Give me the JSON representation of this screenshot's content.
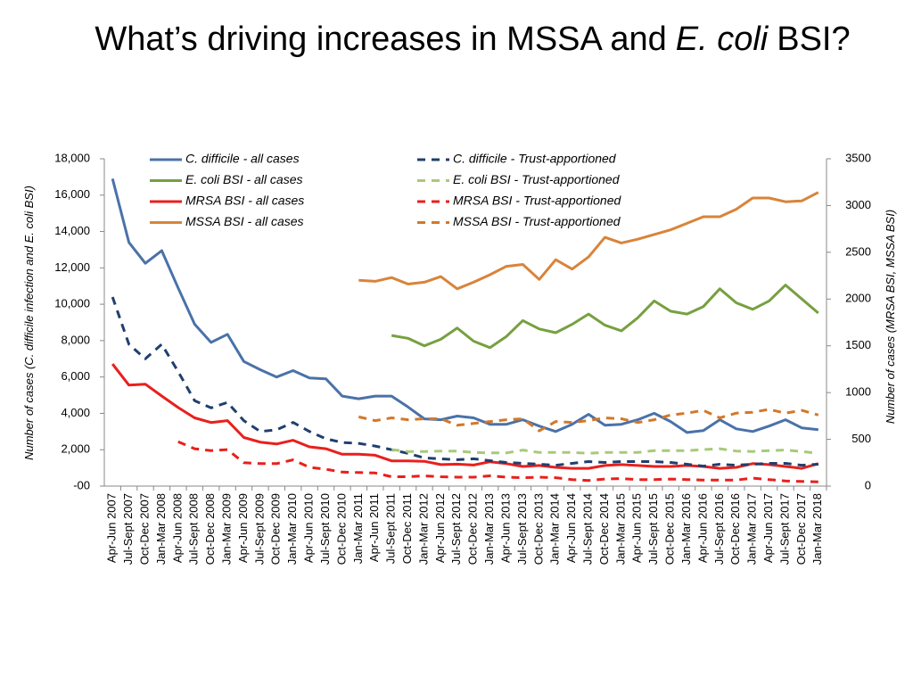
{
  "chart_data": {
    "type": "line",
    "title": [
      "What’s driving increases in MSSA and",
      "E. coli",
      "BSI?"
    ],
    "ylabel": "Number of cases (C. difficile infection and E. coli BSI)",
    "y2label": "Number of cases (MRSA BSI, MSSA BSI)",
    "categories": [
      "Apr-Jun 2007",
      "Jul-Sept 2007",
      "Oct-Dec 2007",
      "Jan-Mar 2008",
      "Apr-Jun 2008",
      "Jul-Sept 2008",
      "Oct-Dec 2008",
      "Jan-Mar 2009",
      "Apr-Jun 2009",
      "Jul-Sept 2009",
      "Oct-Dec 2009",
      "Jan-Mar 2010",
      "Apr-Jun 2010",
      "Jul-Sept 2010",
      "Oct-Dec 2010",
      "Jan-Mar 2011",
      "Apr-Jun 2011",
      "Jul-Sept 2011",
      "Oct-Dec 2011",
      "Jan-Mar 2012",
      "Apr-Jun 2012",
      "Jul-Sept 2012",
      "Oct-Dec 2012",
      "Jan-Mar 2013",
      "Apr-Jun 2013",
      "Jul-Sept 2013",
      "Oct-Dec 2013",
      "Jan-Mar 2014",
      "Apr-Jun 2014",
      "Jul-Sept 2014",
      "Oct-Dec 2014",
      "Jan-Mar 2015",
      "Apr-Jun 2015",
      "Jul-Sept 2015",
      "Oct-Dec 2015",
      "Jan-Mar 2016",
      "Apr-Jun 2016",
      "Jul-Sept 2016",
      "Oct-Dec 2016",
      "Jan-Mar 2017",
      "Apr-Jun 2017",
      "Jul-Sept 2017",
      "Oct-Dec 2017",
      "Jan-Mar 2018"
    ],
    "ylim": [
      0,
      18000
    ],
    "yticks": [
      {
        "value": 0,
        "label": "-00"
      },
      {
        "value": 2000,
        "label": "2,000"
      },
      {
        "value": 4000,
        "label": "4,000"
      },
      {
        "value": 6000,
        "label": "6,000"
      },
      {
        "value": 8000,
        "label": "8,000"
      },
      {
        "value": 10000,
        "label": "10,000"
      },
      {
        "value": 12000,
        "label": "12,000"
      },
      {
        "value": 14000,
        "label": "14,000"
      },
      {
        "value": 16000,
        "label": "16,000"
      },
      {
        "value": 18000,
        "label": "18,000"
      }
    ],
    "y2lim": [
      0,
      3500
    ],
    "y2ticks": [
      0,
      500,
      1000,
      1500,
      2000,
      2500,
      3000,
      3500
    ],
    "series": [
      {
        "name": "C. difficile - all cases",
        "color": "#4a72a8",
        "dashed": false,
        "axis": "y",
        "values": [
          16900,
          13400,
          12250,
          12950,
          10900,
          8900,
          7900,
          8350,
          6850,
          6400,
          6000,
          6350,
          5950,
          5900,
          4950,
          4800,
          4950,
          4950,
          4350,
          3700,
          3650,
          3850,
          3750,
          3400,
          3400,
          3650,
          3300,
          3000,
          3400,
          3950,
          3350,
          3400,
          3650,
          4000,
          3550,
          2950,
          3050,
          3650,
          3150,
          3000,
          3300,
          3650,
          3200,
          3100
        ]
      },
      {
        "name": "E. coli BSI - all cases",
        "color": "#77a040",
        "dashed": false,
        "axis": "y2",
        "values": [
          null,
          null,
          null,
          null,
          null,
          null,
          null,
          null,
          null,
          null,
          null,
          null,
          null,
          null,
          null,
          null,
          null,
          1611,
          1580,
          1500,
          1570,
          1690,
          1550,
          1480,
          1600,
          1770,
          1680,
          1640,
          1730,
          1840,
          1720,
          1660,
          1800,
          1980,
          1870,
          1840,
          1920,
          2110,
          1960,
          1890,
          1980,
          2150,
          2000,
          1850
        ]
      },
      {
        "name": "MRSA BSI - all cases",
        "color": "#e8201c",
        "dashed": false,
        "axis": "y2",
        "values": [
          1306,
          1080,
          1090,
          963,
          840,
          730,
          680,
          700,
          520,
          470,
          450,
          490,
          420,
          400,
          340,
          340,
          330,
          270,
          270,
          265,
          230,
          235,
          225,
          260,
          240,
          210,
          220,
          200,
          190,
          190,
          220,
          230,
          220,
          210,
          210,
          220,
          210,
          190,
          200,
          240,
          230,
          210,
          190,
          240
        ]
      },
      {
        "name": "MSSA BSI - all cases",
        "color": "#d8843a",
        "dashed": false,
        "axis": "y2",
        "values": [
          null,
          null,
          null,
          null,
          null,
          null,
          null,
          null,
          null,
          null,
          null,
          null,
          null,
          null,
          null,
          2200,
          2190,
          2230,
          2160,
          2180,
          2240,
          2110,
          2180,
          2260,
          2350,
          2370,
          2210,
          2420,
          2320,
          2450,
          2660,
          2600,
          2640,
          2690,
          2740,
          2810,
          2880,
          2880,
          2960,
          3080,
          3080,
          3040,
          3050,
          3140
        ]
      },
      {
        "name": "C. difficile - Trust-apportioned",
        "color": "#1f3f6e",
        "dashed": true,
        "axis": "y",
        "values": [
          10400,
          7800,
          7000,
          7800,
          6300,
          4700,
          4300,
          4600,
          3600,
          3000,
          3100,
          3500,
          3000,
          2600,
          2400,
          2350,
          2200,
          2000,
          1800,
          1550,
          1500,
          1450,
          1500,
          1400,
          1300,
          1250,
          1200,
          1150,
          1250,
          1350,
          1300,
          1350,
          1350,
          1350,
          1300,
          1200,
          1100,
          1200,
          1150,
          1200,
          1250,
          1250,
          1150,
          1200
        ]
      },
      {
        "name": "E. coli BSI - Trust-apportioned",
        "color": "#a8c97a",
        "dashed": true,
        "axis": "y2",
        "values": [
          null,
          null,
          null,
          null,
          null,
          null,
          null,
          null,
          null,
          null,
          null,
          null,
          null,
          null,
          null,
          null,
          null,
          390,
          370,
          370,
          375,
          375,
          360,
          355,
          355,
          385,
          360,
          360,
          360,
          350,
          360,
          360,
          360,
          380,
          380,
          380,
          390,
          400,
          375,
          370,
          380,
          385,
          370,
          350
        ]
      },
      {
        "name": "MRSA BSI - Trust-apportioned",
        "color": "#e8201c",
        "dashed": true,
        "axis": "y2",
        "values": [
          null,
          null,
          null,
          null,
          475,
          400,
          380,
          390,
          250,
          240,
          240,
          280,
          200,
          180,
          150,
          145,
          140,
          100,
          100,
          110,
          100,
          95,
          95,
          110,
          95,
          90,
          95,
          90,
          70,
          60,
          75,
          80,
          70,
          70,
          75,
          70,
          65,
          65,
          65,
          85,
          70,
          55,
          50,
          45
        ]
      },
      {
        "name": "MSSA BSI - Trust-apportioned",
        "color": "#d2782a",
        "dashed": true,
        "axis": "y2",
        "values": [
          null,
          null,
          null,
          null,
          null,
          null,
          null,
          null,
          null,
          null,
          null,
          null,
          null,
          null,
          null,
          740,
          700,
          730,
          710,
          720,
          720,
          650,
          670,
          690,
          710,
          720,
          590,
          690,
          680,
          700,
          730,
          720,
          680,
          710,
          760,
          780,
          810,
          730,
          780,
          790,
          820,
          780,
          810,
          760
        ]
      }
    ]
  }
}
